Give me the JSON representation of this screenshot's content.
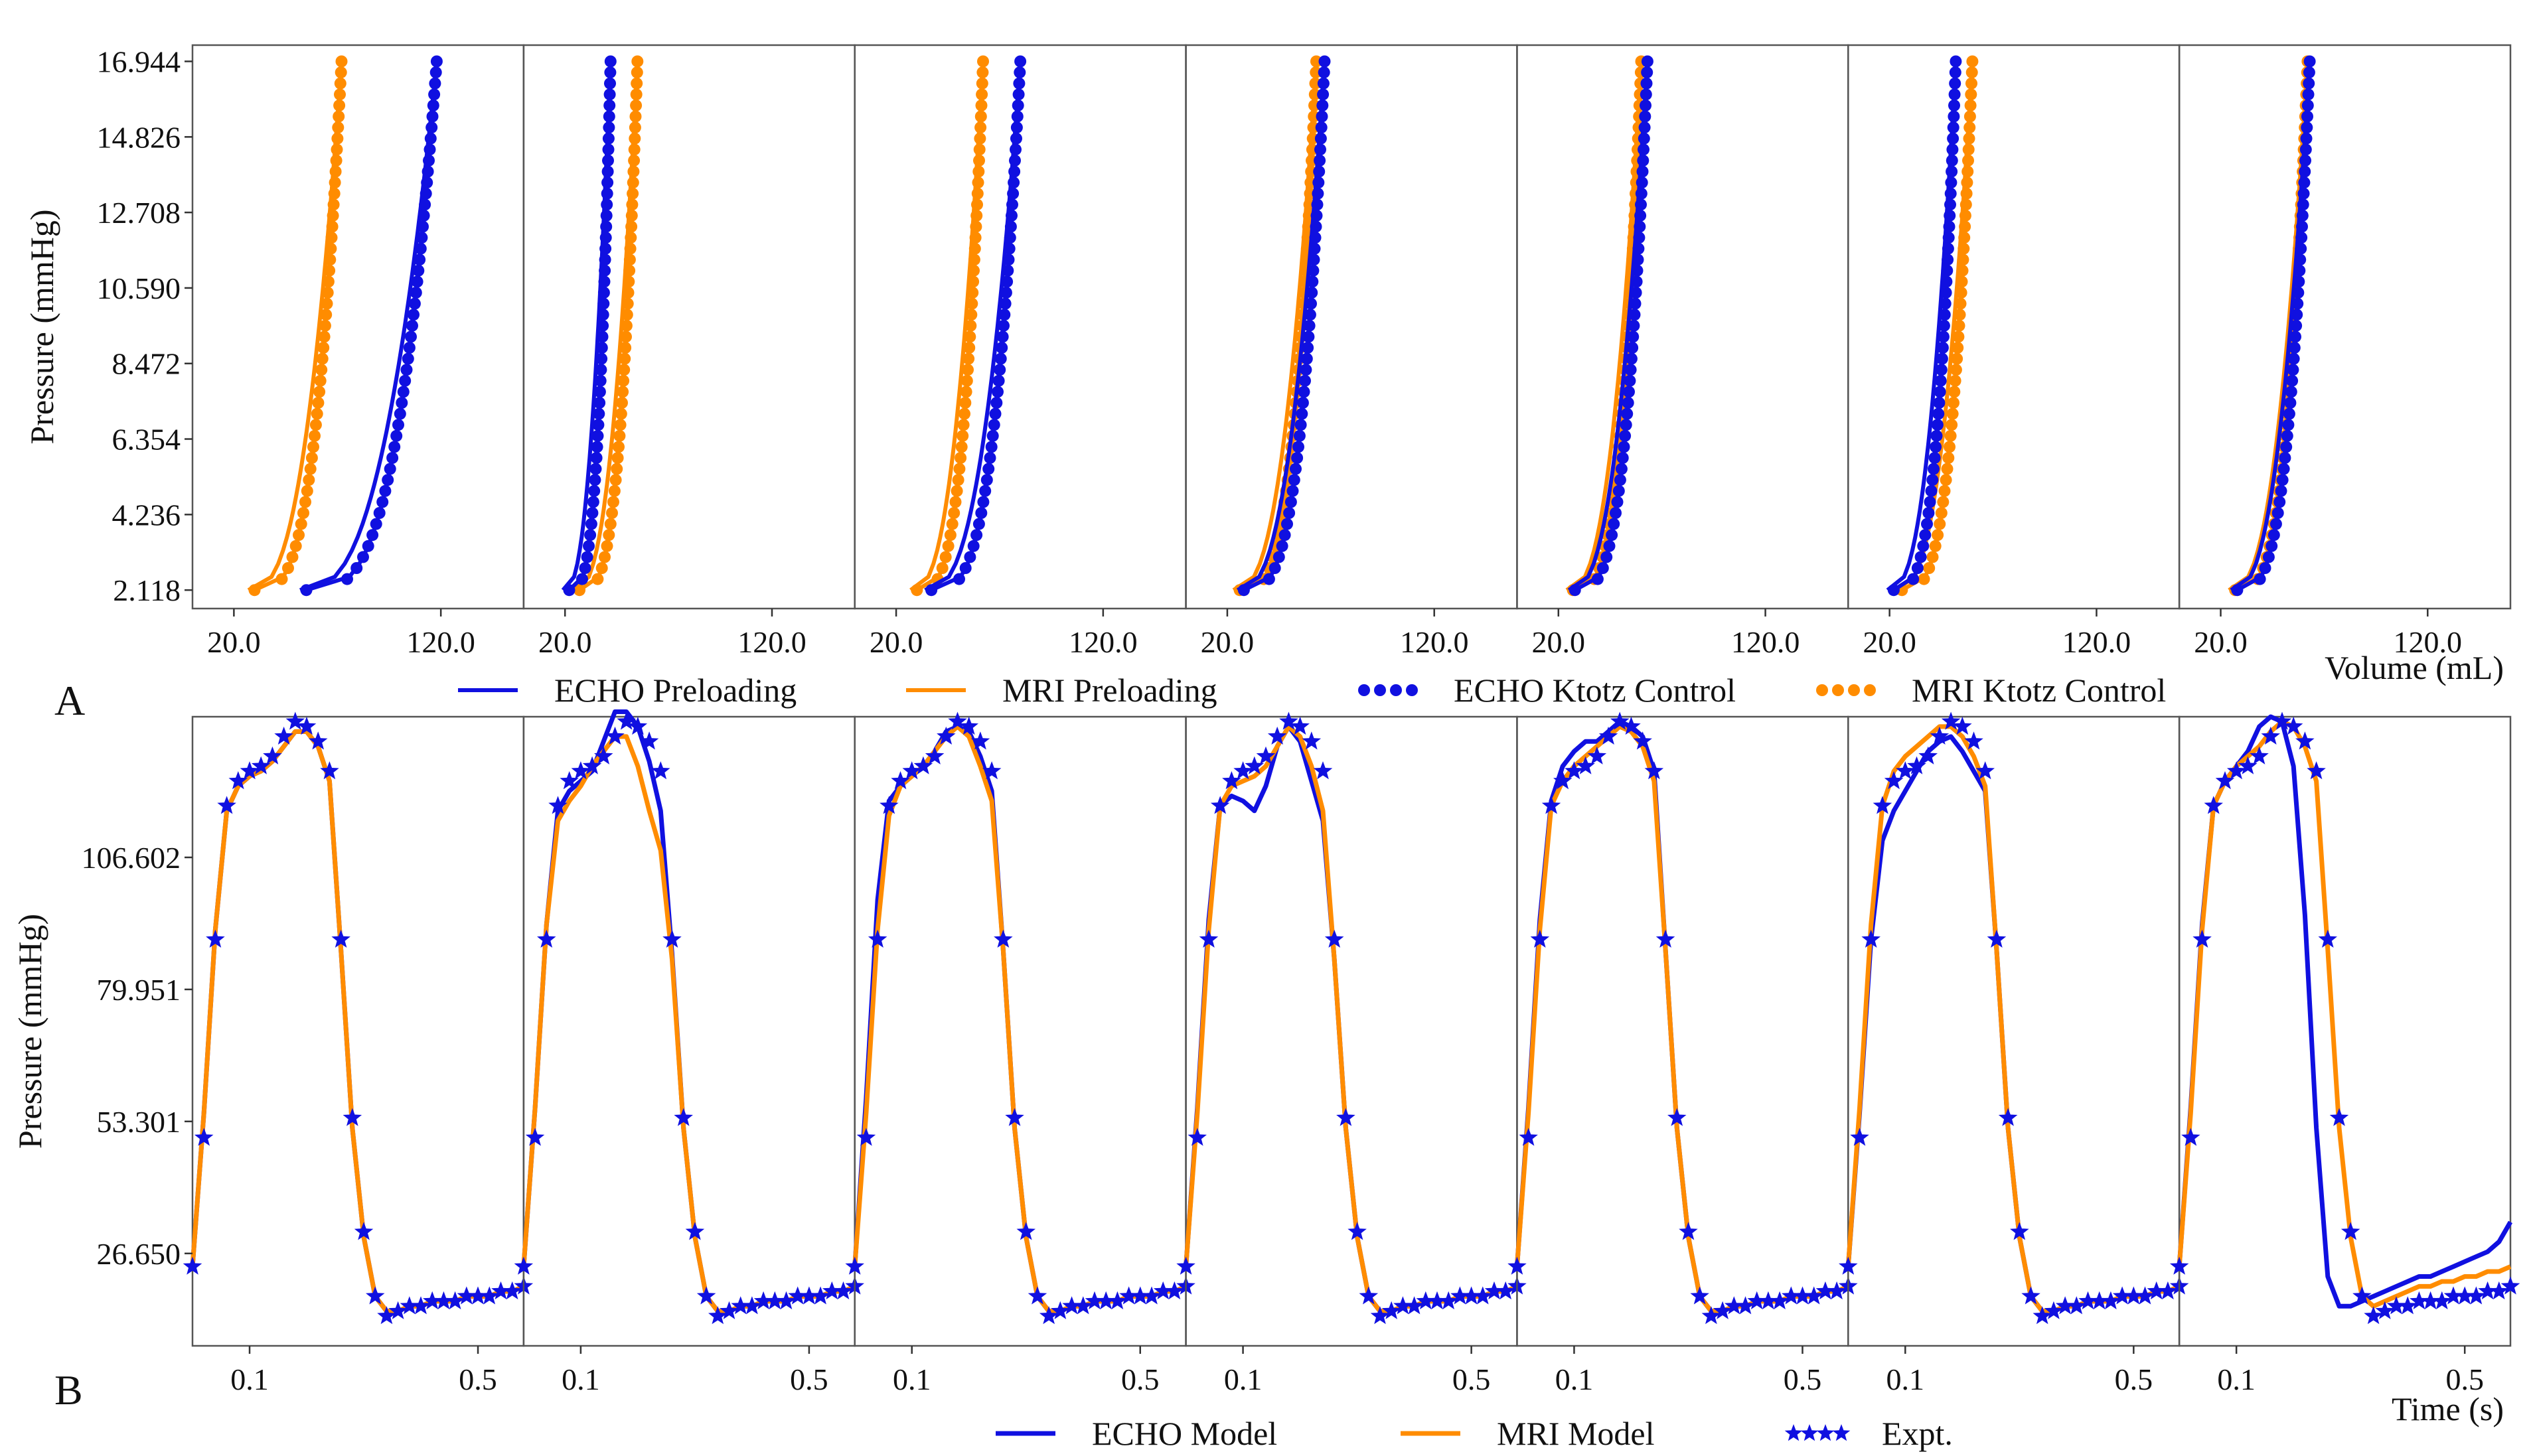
{
  "figure": {
    "panel_a_letter": "A",
    "panel_b_letter": "B"
  },
  "colors": {
    "echo": "#1010e0",
    "mri": "#ff8c00",
    "frame": "#555555"
  },
  "chart_data": [
    {
      "type": "line",
      "panel": "A",
      "ylabel": "Pressure (mmHg)",
      "xlabel": "Volume (mL)",
      "xlim": [
        0,
        160
      ],
      "ylim": [
        1.6,
        17.4
      ],
      "yticks": [
        2.118,
        4.236,
        6.354,
        8.472,
        10.59,
        12.708,
        14.826,
        16.944
      ],
      "ytick_labels": [
        "2.118",
        "4.236",
        "6.354",
        "8.472",
        "10.590",
        "12.708",
        "14.826",
        "16.944"
      ],
      "xticks": [
        20,
        120
      ],
      "xtick_labels": [
        "20.0",
        "120.0"
      ],
      "legend": [
        {
          "label": "ECHO Preloading",
          "style": "line",
          "color": "echo"
        },
        {
          "label": "MRI Preloading",
          "style": "line",
          "color": "mri"
        },
        {
          "label": "ECHO Ktotz Control",
          "style": "dots",
          "color": "echo"
        },
        {
          "label": "MRI Ktotz Control",
          "style": "dots",
          "color": "mri"
        }
      ],
      "pressure_range": [
        2.118,
        16.944
      ],
      "subplots": [
        {
          "echo_v": [
            55,
            118
          ],
          "mri_v": [
            30,
            72
          ]
        },
        {
          "echo_v": [
            22,
            42
          ],
          "mri_v": [
            27,
            55
          ]
        },
        {
          "echo_v": [
            37,
            80
          ],
          "mri_v": [
            30,
            62
          ]
        },
        {
          "echo_v": [
            28,
            67
          ],
          "mri_v": [
            26,
            63
          ]
        },
        {
          "echo_v": [
            28,
            63
          ],
          "mri_v": [
            27,
            60
          ]
        },
        {
          "echo_v": [
            22,
            52
          ],
          "mri_v": [
            26,
            60
          ]
        },
        {
          "echo_v": [
            28,
            63
          ],
          "mri_v": [
            27,
            62
          ]
        }
      ]
    },
    {
      "type": "line",
      "panel": "B",
      "ylabel": "Pressure (mmHg)",
      "xlabel": "Time (s)",
      "xlim": [
        0.0,
        0.58
      ],
      "ylim": [
        8,
        135
      ],
      "yticks": [
        26.65,
        53.301,
        79.951,
        106.602
      ],
      "ytick_labels": [
        "26.650",
        "53.301",
        "79.951",
        "106.602"
      ],
      "xticks": [
        0.1,
        0.5
      ],
      "xtick_labels": [
        "0.1",
        "0.5"
      ],
      "legend": [
        {
          "label": "ECHO Model",
          "style": "line",
          "color": "echo"
        },
        {
          "label": "MRI Model",
          "style": "line",
          "color": "mri"
        },
        {
          "label": "Expt.",
          "style": "stars",
          "color": "echo"
        }
      ],
      "expt": {
        "t": [
          0.0,
          0.02,
          0.04,
          0.06,
          0.08,
          0.1,
          0.12,
          0.14,
          0.16,
          0.18,
          0.2,
          0.22,
          0.24,
          0.26,
          0.28,
          0.3,
          0.32,
          0.34,
          0.36,
          0.38,
          0.4,
          0.42,
          0.44,
          0.46,
          0.48,
          0.5,
          0.52,
          0.54,
          0.56,
          0.58
        ],
        "p": [
          24,
          50,
          90,
          117,
          122,
          124,
          125,
          127,
          131,
          134,
          133,
          130,
          124,
          90,
          54,
          31,
          18,
          14,
          15,
          16,
          16,
          17,
          17,
          17,
          18,
          18,
          18,
          19,
          19,
          20
        ]
      },
      "model_t": [
        0.0,
        0.02,
        0.04,
        0.06,
        0.08,
        0.1,
        0.12,
        0.14,
        0.16,
        0.18,
        0.2,
        0.22,
        0.24,
        0.26,
        0.28,
        0.3,
        0.32,
        0.34,
        0.36,
        0.38,
        0.4,
        0.42,
        0.44,
        0.46,
        0.48,
        0.5,
        0.52,
        0.54,
        0.56,
        0.58
      ],
      "subplots": [
        {
          "echo": [
            24,
            55,
            92,
            116,
            121,
            123,
            124,
            126,
            129,
            132,
            132,
            129,
            122,
            88,
            52,
            30,
            18,
            15,
            15,
            16,
            16,
            17,
            17,
            17,
            18,
            18,
            18,
            19,
            19,
            20
          ],
          "mri": [
            24,
            55,
            92,
            116,
            121,
            123,
            124,
            126,
            129,
            132,
            132,
            129,
            122,
            88,
            52,
            30,
            18,
            15,
            15,
            16,
            16,
            17,
            17,
            17,
            18,
            18,
            18,
            19,
            19,
            20
          ]
        },
        {
          "echo": [
            24,
            56,
            93,
            116,
            120,
            122,
            124,
            130,
            136,
            136,
            133,
            126,
            116,
            87,
            52,
            30,
            18,
            15,
            15,
            16,
            16,
            17,
            17,
            17,
            18,
            18,
            18,
            19,
            19,
            20
          ],
          "mri": [
            24,
            56,
            93,
            114,
            118,
            121,
            125,
            128,
            131,
            131,
            125,
            116,
            108,
            86,
            52,
            30,
            18,
            15,
            15,
            16,
            16,
            17,
            17,
            17,
            18,
            18,
            18,
            19,
            19,
            20
          ]
        },
        {
          "echo": [
            24,
            58,
            98,
            118,
            121,
            123,
            125,
            128,
            132,
            133,
            132,
            127,
            120,
            88,
            52,
            30,
            18,
            15,
            15,
            16,
            16,
            17,
            17,
            17,
            18,
            18,
            18,
            19,
            19,
            20
          ],
          "mri": [
            24,
            55,
            92,
            115,
            121,
            123,
            125,
            128,
            131,
            133,
            131,
            125,
            118,
            88,
            52,
            30,
            18,
            15,
            15,
            16,
            16,
            17,
            17,
            17,
            18,
            18,
            18,
            19,
            19,
            20
          ]
        },
        {
          "echo": [
            24,
            56,
            94,
            117,
            119,
            118,
            116,
            121,
            129,
            133,
            130,
            122,
            114,
            86,
            52,
            30,
            18,
            15,
            15,
            16,
            16,
            17,
            17,
            17,
            18,
            18,
            18,
            19,
            19,
            20
          ],
          "mri": [
            24,
            55,
            92,
            117,
            121,
            122,
            123,
            125,
            129,
            133,
            131,
            125,
            116,
            86,
            52,
            30,
            18,
            15,
            15,
            16,
            16,
            17,
            17,
            17,
            18,
            18,
            18,
            19,
            19,
            20
          ]
        },
        {
          "echo": [
            24,
            56,
            94,
            118,
            125,
            128,
            130,
            130,
            132,
            134,
            133,
            131,
            124,
            88,
            52,
            30,
            18,
            15,
            15,
            16,
            16,
            17,
            17,
            17,
            18,
            18,
            18,
            19,
            19,
            20
          ],
          "mri": [
            24,
            55,
            92,
            117,
            122,
            125,
            127,
            129,
            131,
            133,
            132,
            129,
            122,
            88,
            52,
            30,
            18,
            15,
            15,
            16,
            16,
            17,
            17,
            17,
            18,
            18,
            18,
            19,
            19,
            20
          ]
        },
        {
          "echo": [
            24,
            55,
            90,
            110,
            116,
            120,
            124,
            128,
            130,
            131,
            128,
            124,
            120,
            88,
            52,
            30,
            18,
            15,
            15,
            16,
            16,
            17,
            17,
            17,
            18,
            18,
            18,
            19,
            19,
            20
          ],
          "mri": [
            24,
            56,
            93,
            117,
            124,
            127,
            129,
            131,
            133,
            133,
            131,
            127,
            121,
            88,
            52,
            30,
            18,
            15,
            15,
            16,
            16,
            17,
            17,
            17,
            18,
            18,
            18,
            19,
            19,
            20
          ]
        },
        {
          "echo": [
            24,
            56,
            93,
            117,
            122,
            125,
            128,
            133,
            135,
            134,
            125,
            95,
            52,
            22,
            16,
            16,
            17,
            18,
            19,
            20,
            21,
            22,
            22,
            23,
            24,
            25,
            26,
            27,
            29,
            33
          ],
          "mri": [
            24,
            55,
            92,
            117,
            122,
            125,
            127,
            129,
            132,
            134,
            133,
            129,
            122,
            88,
            52,
            30,
            18,
            16,
            17,
            18,
            19,
            20,
            20,
            21,
            21,
            22,
            22,
            23,
            23,
            24
          ]
        }
      ]
    }
  ]
}
